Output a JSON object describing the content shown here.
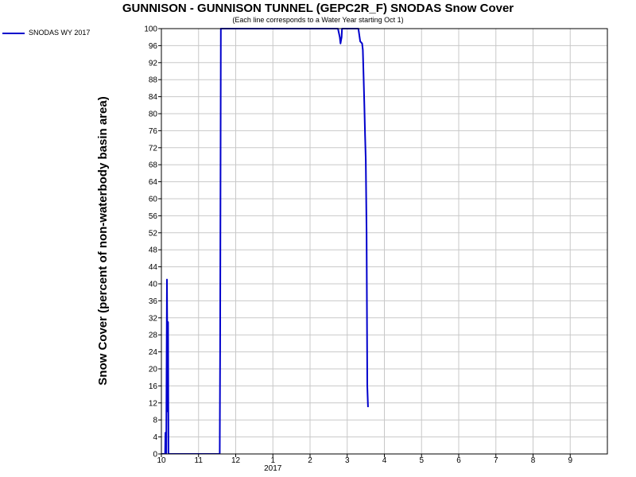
{
  "chart_data": {
    "type": "line",
    "title": "GUNNISON - GUNNISON TUNNEL (GEPC2R_F) SNODAS Snow Cover",
    "subtitle": "(Each line corresponds to a Water Year starting Oct 1)",
    "ylabel": "Snow Cover (percent of non-waterbody basin area)",
    "xlabel": "",
    "ylim": [
      0,
      100
    ],
    "yticks": [
      "0",
      "4",
      "8",
      "12",
      "16",
      "20",
      "24",
      "28",
      "32",
      "36",
      "40",
      "44",
      "48",
      "52",
      "56",
      "60",
      "64",
      "68",
      "72",
      "76",
      "80",
      "84",
      "88",
      "92",
      "96",
      "100"
    ],
    "xticks": [
      {
        "label": "10",
        "month": 0
      },
      {
        "label": "11",
        "month": 1
      },
      {
        "label": "12",
        "month": 2
      },
      {
        "label": "1",
        "month": 3
      },
      {
        "label": "2",
        "month": 4
      },
      {
        "label": "3",
        "month": 5
      },
      {
        "label": "4",
        "month": 6
      },
      {
        "label": "5",
        "month": 7
      },
      {
        "label": "6",
        "month": 8
      },
      {
        "label": "7",
        "month": 9
      },
      {
        "label": "8",
        "month": 10
      },
      {
        "label": "9",
        "month": 11
      }
    ],
    "xlim_months": [
      0,
      12.0
    ],
    "year_label": "2017",
    "year_label_month": 3,
    "grid": true,
    "legend_position": "top-left",
    "series": [
      {
        "name": "SNODAS WY 2017",
        "color": "#0000cc",
        "points": [
          [
            0.0,
            0
          ],
          [
            0.1,
            0
          ],
          [
            0.11,
            5
          ],
          [
            0.13,
            0
          ],
          [
            0.15,
            41
          ],
          [
            0.17,
            10
          ],
          [
            0.18,
            31
          ],
          [
            0.19,
            0
          ],
          [
            0.21,
            0
          ],
          [
            0.5,
            0
          ],
          [
            1.0,
            0
          ],
          [
            1.55,
            0
          ],
          [
            1.57,
            0
          ],
          [
            1.58,
            25
          ],
          [
            1.6,
            100
          ],
          [
            2.0,
            100
          ],
          [
            2.5,
            100
          ],
          [
            3.0,
            100
          ],
          [
            3.5,
            100
          ],
          [
            4.5,
            100
          ],
          [
            4.75,
            100
          ],
          [
            4.8,
            98
          ],
          [
            4.82,
            96.5
          ],
          [
            4.85,
            98
          ],
          [
            4.86,
            100
          ],
          [
            5.0,
            100
          ],
          [
            5.3,
            100
          ],
          [
            5.35,
            97
          ],
          [
            5.4,
            96.5
          ],
          [
            5.42,
            95
          ],
          [
            5.44,
            89
          ],
          [
            5.46,
            82
          ],
          [
            5.48,
            75
          ],
          [
            5.5,
            69
          ],
          [
            5.52,
            52
          ],
          [
            5.54,
            16
          ],
          [
            5.56,
            11
          ]
        ]
      }
    ]
  }
}
